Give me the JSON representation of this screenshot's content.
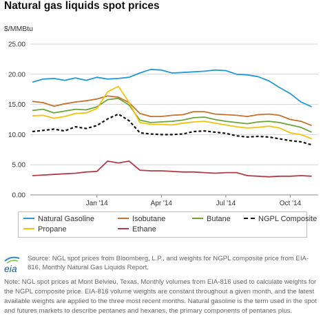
{
  "title": "Natural gas liquids spot prices",
  "unit_label": "$/MMBtu",
  "source_text": "Source: NGL spot prices from Bloomberg, L.P., and weights for NGPL composite price from EIA-816, Monthly Natural Gas Liquids Report.",
  "note_text": "Note: NGL spot prices at Mont Belvieu, Texas. Monthly volumes from EIA-816 used to calculate weights for the NGPL composite price. EIA-816 volume weights are constant throughout a given month, and the latest available weights are applied to the three most recent months. Natural gasoline is the term used in the spot and futures markets to describe pentanes and hexanes, the primary components of pentanes plus.",
  "logo_text": "eia",
  "chart_data": {
    "type": "line",
    "title": "Natural gas liquids spot prices",
    "ylabel": "$/MMBtu",
    "ylim": [
      0,
      25
    ],
    "yticks": [
      "0.00",
      "5.00",
      "10.00",
      "15.00",
      "20.00",
      "25.00"
    ],
    "xticks": [
      "Jan '14",
      "Apr '14",
      "Jul '14",
      "Oct '14"
    ],
    "xtick_pos": [
      4,
      7,
      10,
      13
    ],
    "x_range": [
      0.9,
      14.3
    ],
    "grid": "horizontal",
    "legend_position": "bottom",
    "x": [
      1.0,
      1.5,
      2.0,
      2.5,
      3.0,
      3.5,
      4.0,
      4.5,
      5.0,
      5.5,
      6.0,
      6.5,
      7.0,
      7.5,
      8.0,
      8.5,
      9.0,
      9.5,
      10.0,
      10.5,
      11.0,
      11.5,
      12.0,
      12.5,
      13.0,
      13.5,
      14.0
    ],
    "series": [
      {
        "name": "Natural Gasoline",
        "color": "#1f9ad6",
        "dash": false,
        "values": [
          18.7,
          19.2,
          19.3,
          19.0,
          19.4,
          19.0,
          19.5,
          19.2,
          19.3,
          19.5,
          20.2,
          20.8,
          20.7,
          20.2,
          20.3,
          20.4,
          20.5,
          20.7,
          20.6,
          20.0,
          19.9,
          19.6,
          18.9,
          17.8,
          16.8,
          15.4,
          14.6
        ]
      },
      {
        "name": "Isobutane",
        "color": "#c8702a",
        "dash": false,
        "values": [
          15.5,
          15.3,
          14.7,
          15.1,
          15.4,
          15.6,
          15.9,
          16.4,
          16.2,
          15.3,
          13.5,
          13.0,
          13.0,
          13.2,
          13.3,
          13.8,
          13.8,
          13.4,
          13.3,
          13.2,
          13.0,
          13.3,
          13.4,
          13.2,
          12.5,
          12.2,
          11.5
        ]
      },
      {
        "name": "Butane",
        "color": "#6aa536",
        "dash": false,
        "values": [
          14.0,
          14.2,
          13.6,
          13.9,
          14.2,
          14.1,
          14.6,
          15.8,
          16.0,
          14.9,
          12.4,
          12.0,
          12.1,
          12.2,
          12.4,
          12.8,
          12.9,
          12.5,
          12.2,
          12.0,
          11.8,
          12.1,
          12.2,
          12.0,
          11.6,
          11.2,
          10.4
        ]
      },
      {
        "name": "NGPL Composite",
        "color": "#111111",
        "dash": true,
        "values": [
          10.5,
          10.7,
          10.9,
          10.6,
          11.3,
          11.0,
          11.5,
          12.6,
          13.4,
          12.3,
          10.3,
          10.1,
          10.0,
          10.0,
          10.1,
          10.5,
          10.6,
          10.4,
          10.2,
          9.8,
          9.6,
          9.7,
          9.6,
          9.3,
          9.0,
          8.8,
          8.3
        ]
      },
      {
        "name": "Propane",
        "color": "#f4c20d",
        "dash": false,
        "values": [
          13.1,
          13.2,
          12.7,
          13.0,
          13.5,
          13.6,
          14.3,
          17.1,
          18.0,
          15.3,
          12.0,
          11.7,
          11.7,
          11.6,
          11.9,
          12.1,
          12.2,
          11.9,
          11.6,
          11.3,
          11.1,
          11.2,
          11.4,
          11.1,
          10.3,
          10.0,
          9.3
        ]
      },
      {
        "name": "Ethane",
        "color": "#b23a48",
        "dash": false,
        "values": [
          3.2,
          3.3,
          3.4,
          3.5,
          3.6,
          3.8,
          3.9,
          5.6,
          5.3,
          5.6,
          4.1,
          4.0,
          4.0,
          3.9,
          3.8,
          3.8,
          3.7,
          3.6,
          3.7,
          3.7,
          3.2,
          3.1,
          3.0,
          3.1,
          3.1,
          3.2,
          3.1
        ]
      }
    ]
  }
}
